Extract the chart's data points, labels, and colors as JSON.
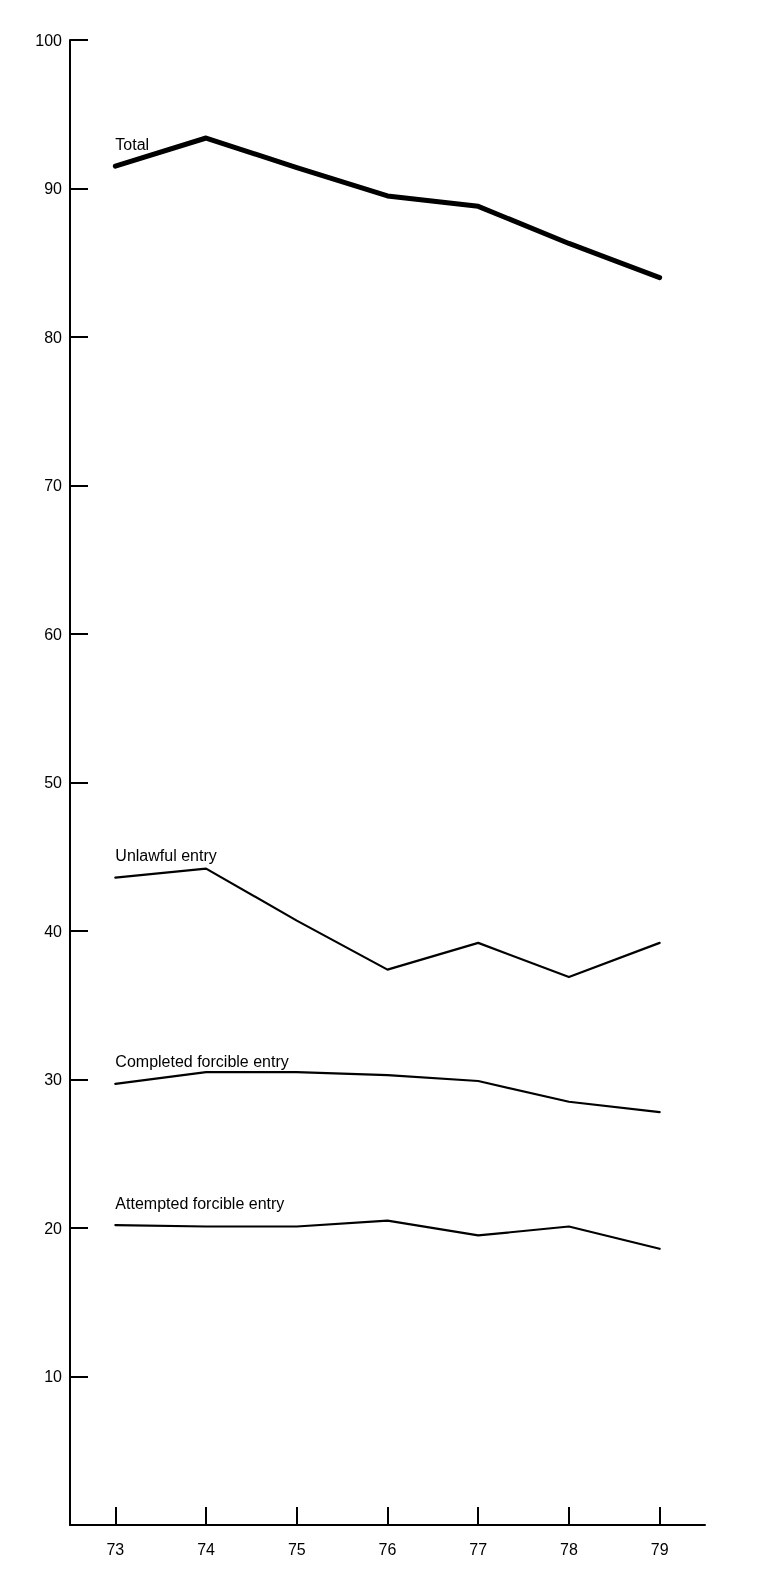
{
  "chart_data": {
    "type": "line",
    "categories": [
      "73",
      "74",
      "75",
      "76",
      "77",
      "78",
      "79"
    ],
    "series": [
      {
        "name": "Total",
        "color": "#000000",
        "values": [
          91.5,
          93.4,
          91.4,
          89.5,
          88.8,
          86.3,
          84.0
        ]
      },
      {
        "name": "Unlawful entry",
        "color": "#000000",
        "values": [
          43.6,
          44.2,
          40.7,
          37.4,
          39.2,
          36.9,
          39.2
        ]
      },
      {
        "name": "Completed forcible entry",
        "color": "#000000",
        "values": [
          29.7,
          30.5,
          30.5,
          30.3,
          29.9,
          28.5,
          27.8
        ]
      },
      {
        "name": "Attempted forcible entry",
        "color": "#000000",
        "values": [
          20.2,
          20.1,
          20.1,
          20.5,
          19.5,
          20.1,
          18.6
        ]
      }
    ],
    "ylim": [
      0,
      100
    ],
    "yticks": [
      10,
      20,
      30,
      40,
      50,
      60,
      70,
      80,
      90,
      100
    ],
    "grid": false,
    "legend": false,
    "marker": "none",
    "line_style": "solid"
  }
}
